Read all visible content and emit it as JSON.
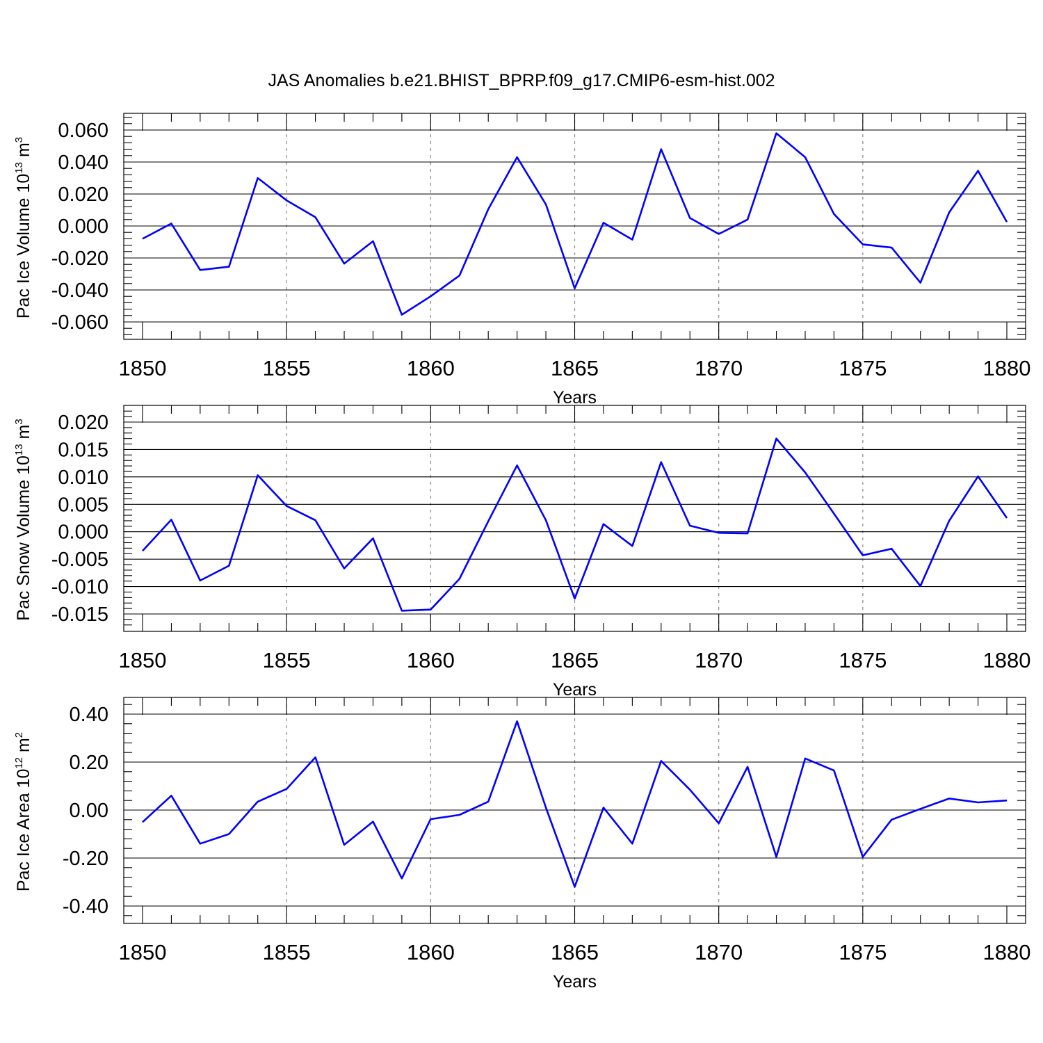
{
  "title": "JAS Anomalies b.e21.BHIST_BPRP.f09_g17.CMIP6-esm-hist.002",
  "colors": {
    "line": "#0000ff",
    "frame": "#000000",
    "grid": "#888888"
  },
  "chart_data": [
    {
      "type": "line",
      "ylabel": "Pac Ice Volume 10",
      "ylabel_exp": "13",
      "ylabel_unit": " m",
      "ylabel_unit_exp": "3",
      "xlabel": "Years",
      "xlim": [
        1850,
        1880
      ],
      "ylim": [
        -0.06,
        0.06
      ],
      "xticks": [
        "1850",
        "1855",
        "1860",
        "1865",
        "1870",
        "1875",
        "1880"
      ],
      "yticks": [
        "0.060",
        "0.040",
        "0.020",
        "0.000",
        "-0.020",
        "-0.040",
        "-0.060"
      ],
      "grid": "vertical dashed at 5-year major ticks",
      "x": [
        1850,
        1851,
        1852,
        1853,
        1854,
        1855,
        1856,
        1857,
        1858,
        1859,
        1860,
        1861,
        1862,
        1863,
        1864,
        1865,
        1866,
        1867,
        1868,
        1869,
        1870,
        1871,
        1872,
        1873,
        1874,
        1875,
        1876,
        1877,
        1878,
        1879,
        1880
      ],
      "y": [
        -0.008,
        0.0015,
        -0.0275,
        -0.0255,
        0.03,
        0.016,
        0.0055,
        -0.0235,
        -0.0095,
        -0.0555,
        -0.044,
        -0.031,
        0.0105,
        0.043,
        0.0135,
        -0.039,
        0.002,
        -0.0085,
        0.048,
        0.005,
        -0.005,
        0.004,
        0.058,
        0.043,
        0.0075,
        -0.0115,
        -0.0135,
        -0.0355,
        0.0085,
        0.0345,
        0.0025
      ]
    },
    {
      "type": "line",
      "ylabel": "Pac Snow Volume 10",
      "ylabel_exp": "13",
      "ylabel_unit": " m",
      "ylabel_unit_exp": "3",
      "xlabel": "Years",
      "xlim": [
        1850,
        1880
      ],
      "ylim": [
        -0.015,
        0.02
      ],
      "xticks": [
        "1850",
        "1855",
        "1860",
        "1865",
        "1870",
        "1875",
        "1880"
      ],
      "yticks": [
        "0.020",
        "0.015",
        "0.010",
        "0.005",
        "0.000",
        "-0.005",
        "-0.010",
        "-0.015"
      ],
      "grid": "vertical dashed at 5-year major ticks",
      "x": [
        1850,
        1851,
        1852,
        1853,
        1854,
        1855,
        1856,
        1857,
        1858,
        1859,
        1860,
        1861,
        1862,
        1863,
        1864,
        1865,
        1866,
        1867,
        1868,
        1869,
        1870,
        1871,
        1872,
        1873,
        1874,
        1875,
        1876,
        1877,
        1878,
        1879,
        1880
      ],
      "y": [
        -0.0035,
        0.0022,
        -0.0089,
        -0.0062,
        0.0103,
        0.0047,
        0.0021,
        -0.0067,
        -0.0012,
        -0.0144,
        -0.0142,
        -0.0086,
        0.0019,
        0.0121,
        0.0021,
        -0.0122,
        0.0014,
        -0.0026,
        0.0127,
        0.0011,
        -0.0002,
        -0.0003,
        0.017,
        0.0108,
        0.0033,
        -0.0043,
        -0.0031,
        -0.0099,
        0.002,
        0.0101,
        0.0025
      ]
    },
    {
      "type": "line",
      "ylabel": "Pac Ice Area 10",
      "ylabel_exp": "12",
      "ylabel_unit": " m",
      "ylabel_unit_exp": "2",
      "xlabel": "Years",
      "xlim": [
        1850,
        1880
      ],
      "ylim": [
        -0.4,
        0.4
      ],
      "xticks": [
        "1850",
        "1855",
        "1860",
        "1865",
        "1870",
        "1875",
        "1880"
      ],
      "yticks": [
        "0.40",
        "0.20",
        "0.00",
        "-0.20",
        "-0.40"
      ],
      "grid": "vertical dashed at 5-year major ticks",
      "x": [
        1850,
        1851,
        1852,
        1853,
        1854,
        1855,
        1856,
        1857,
        1858,
        1859,
        1860,
        1861,
        1862,
        1863,
        1864,
        1865,
        1866,
        1867,
        1868,
        1869,
        1870,
        1871,
        1872,
        1873,
        1874,
        1875,
        1876,
        1877,
        1878,
        1879,
        1880
      ],
      "y": [
        -0.05,
        0.06,
        -0.14,
        -0.1,
        0.035,
        0.088,
        0.22,
        -0.145,
        -0.048,
        -0.285,
        -0.038,
        -0.02,
        0.035,
        0.37,
        0.01,
        -0.32,
        0.01,
        -0.14,
        0.205,
        0.085,
        -0.055,
        0.18,
        -0.195,
        0.215,
        0.165,
        -0.195,
        -0.04,
        0.005,
        0.048,
        0.032,
        0.04
      ]
    }
  ]
}
